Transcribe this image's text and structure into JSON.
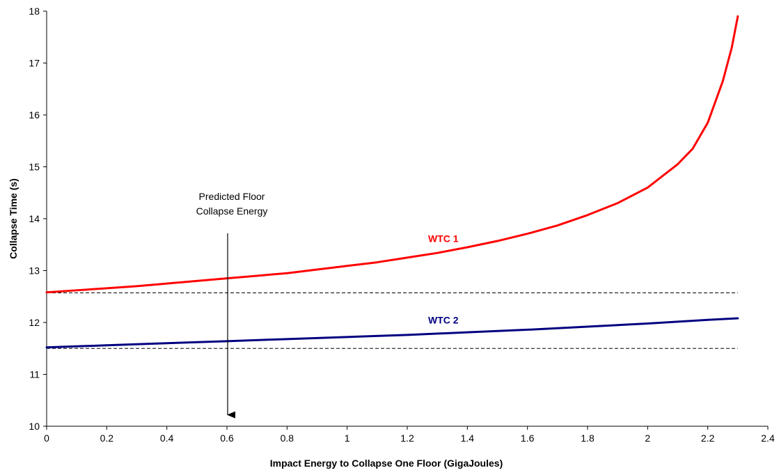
{
  "chart_data": {
    "type": "line",
    "title": "",
    "xlabel": "Impact Energy to Collapse One Floor (GigaJoules)",
    "ylabel": "Collapse Time (s)",
    "xlim": [
      0,
      2.4
    ],
    "ylim": [
      10,
      18
    ],
    "x_ticks": [
      "0",
      "0.2",
      "0.4",
      "0.6",
      "0.8",
      "1",
      "1.2",
      "1.4",
      "1.6",
      "1.8",
      "2",
      "2.2",
      "2.4"
    ],
    "y_ticks": [
      "10",
      "11",
      "12",
      "13",
      "14",
      "15",
      "16",
      "17",
      "18"
    ],
    "grid": false,
    "legend": "none",
    "series": [
      {
        "name": "WTC 1",
        "color": "#ff0000",
        "x": [
          0,
          0.1,
          0.2,
          0.3,
          0.4,
          0.5,
          0.6,
          0.7,
          0.8,
          0.9,
          1.0,
          1.1,
          1.2,
          1.3,
          1.4,
          1.5,
          1.6,
          1.7,
          1.8,
          1.9,
          2.0,
          2.1,
          2.15,
          2.2,
          2.25,
          2.28,
          2.3
        ],
        "y": [
          12.58,
          12.62,
          12.66,
          12.7,
          12.75,
          12.8,
          12.85,
          12.9,
          12.95,
          13.02,
          13.09,
          13.16,
          13.25,
          13.34,
          13.45,
          13.57,
          13.71,
          13.87,
          14.07,
          14.3,
          14.6,
          15.05,
          15.35,
          15.85,
          16.65,
          17.3,
          17.9
        ]
      },
      {
        "name": "WTC 2",
        "color": "#000080",
        "x": [
          0,
          0.2,
          0.4,
          0.6,
          0.8,
          1.0,
          1.2,
          1.4,
          1.6,
          1.8,
          2.0,
          2.2,
          2.3
        ],
        "y": [
          11.52,
          11.56,
          11.6,
          11.64,
          11.68,
          11.72,
          11.76,
          11.81,
          11.86,
          11.92,
          11.98,
          12.05,
          12.08
        ]
      }
    ],
    "reference_lines": [
      {
        "y": 12.57,
        "x_start": 0,
        "x_end": 2.3,
        "style": "dashed"
      },
      {
        "y": 11.5,
        "x_start": 0,
        "x_end": 2.3,
        "style": "dashed"
      }
    ],
    "annotations": [
      {
        "lines": [
          "Predicted Floor",
          "Collapse Energy"
        ],
        "arrow_x": 0.6,
        "arrow_y_from": 13.72,
        "arrow_y_to": 10.22
      }
    ]
  }
}
